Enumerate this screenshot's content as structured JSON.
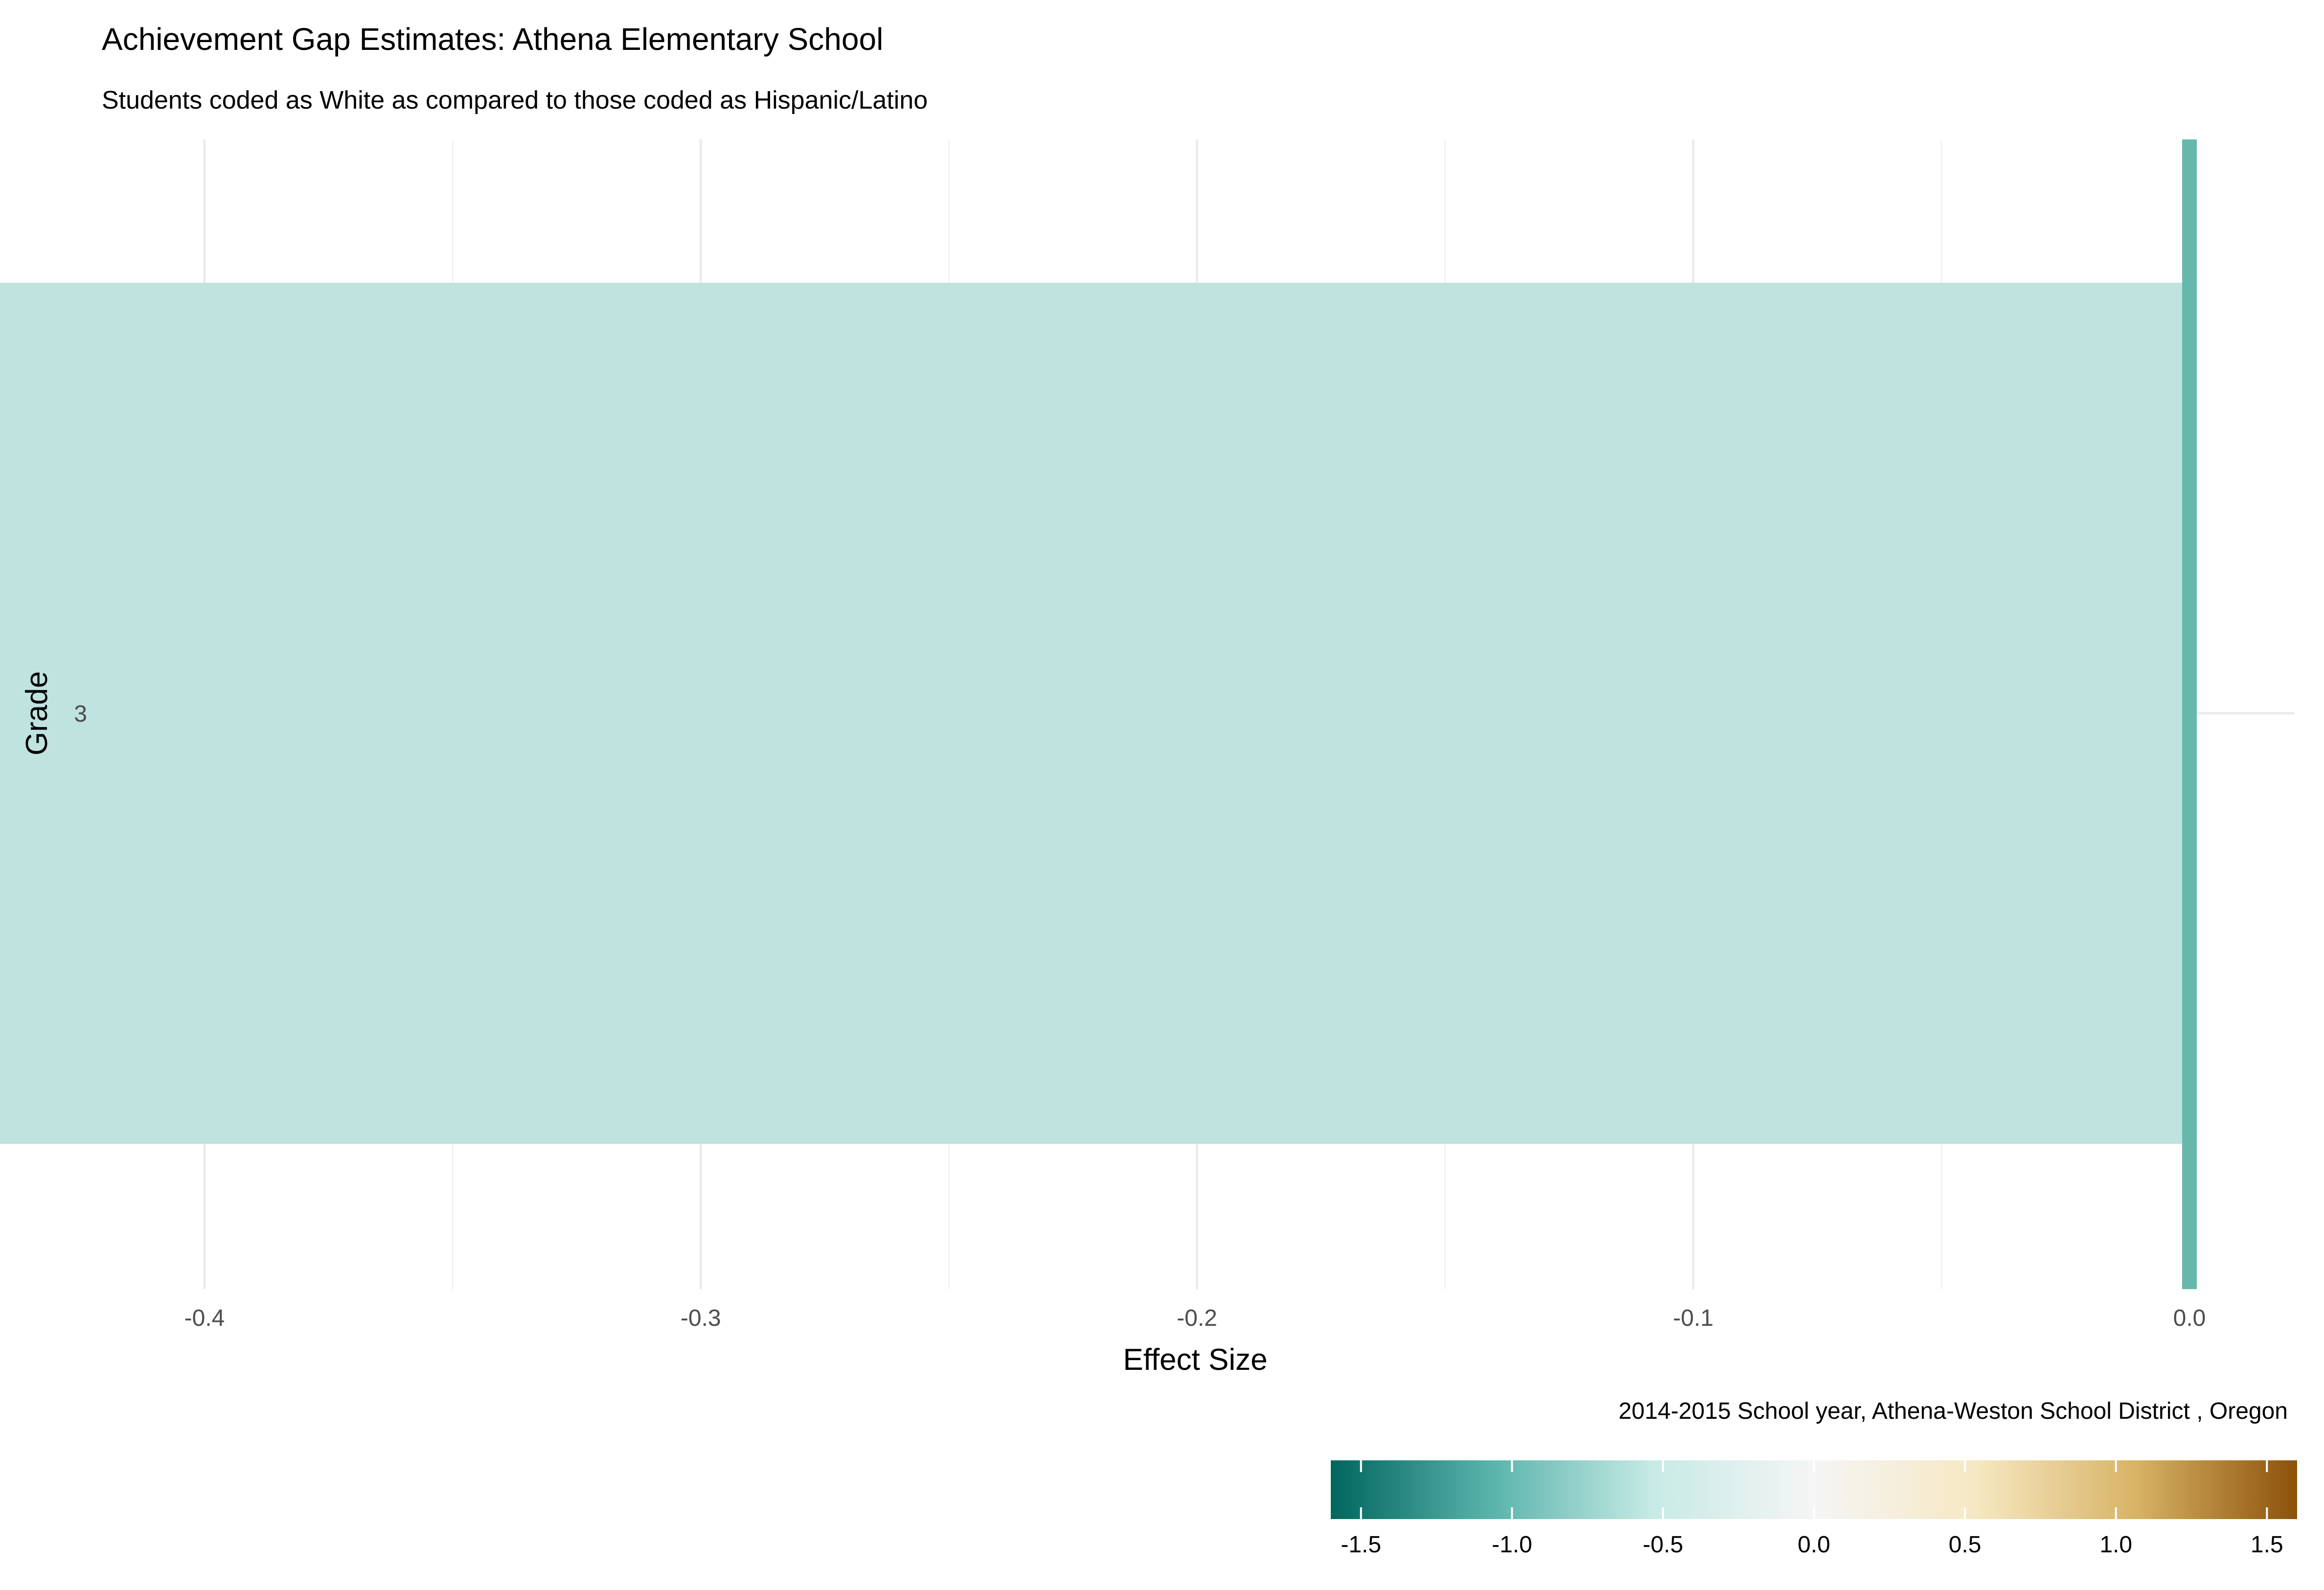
{
  "chart_data": {
    "type": "bar",
    "orientation": "horizontal",
    "title": "Achievement Gap Estimates: Athena Elementary School",
    "subtitle": "Students coded as White as compared to those coded as Hispanic/Latino",
    "xlabel": "Effect Size",
    "ylabel": "Grade",
    "caption": "2014-2015 School year,  Athena-Weston School District , Oregon",
    "categories": [
      "3"
    ],
    "values": [
      -0.45
    ],
    "xlim": [
      -0.45,
      0.0
    ],
    "x_ticks": [
      "-0.4",
      "-0.3",
      "-0.2",
      "-0.1",
      "0.0"
    ],
    "x_tick_values": [
      -0.4,
      -0.3,
      -0.2,
      -0.1,
      0.0
    ],
    "reference_line": 0.0,
    "grid": true,
    "colors": {
      "bar": "#bfe3df",
      "zero_line": "#66b8ad"
    },
    "legend": {
      "position": "bottom-right",
      "type": "colorbar",
      "range": [
        -1.6,
        1.6
      ],
      "ticks": [
        "-1.5",
        "-1.0",
        "-0.5",
        "0.0",
        "0.5",
        "1.0",
        "1.5"
      ],
      "tick_values": [
        -1.5,
        -1.0,
        -0.5,
        0.0,
        0.5,
        1.0,
        1.5
      ],
      "colors": [
        "#01665e",
        "#5ab4ac",
        "#c7eae5",
        "#f5f5f5",
        "#f6e8c3",
        "#d8b365",
        "#8c510a"
      ]
    }
  }
}
